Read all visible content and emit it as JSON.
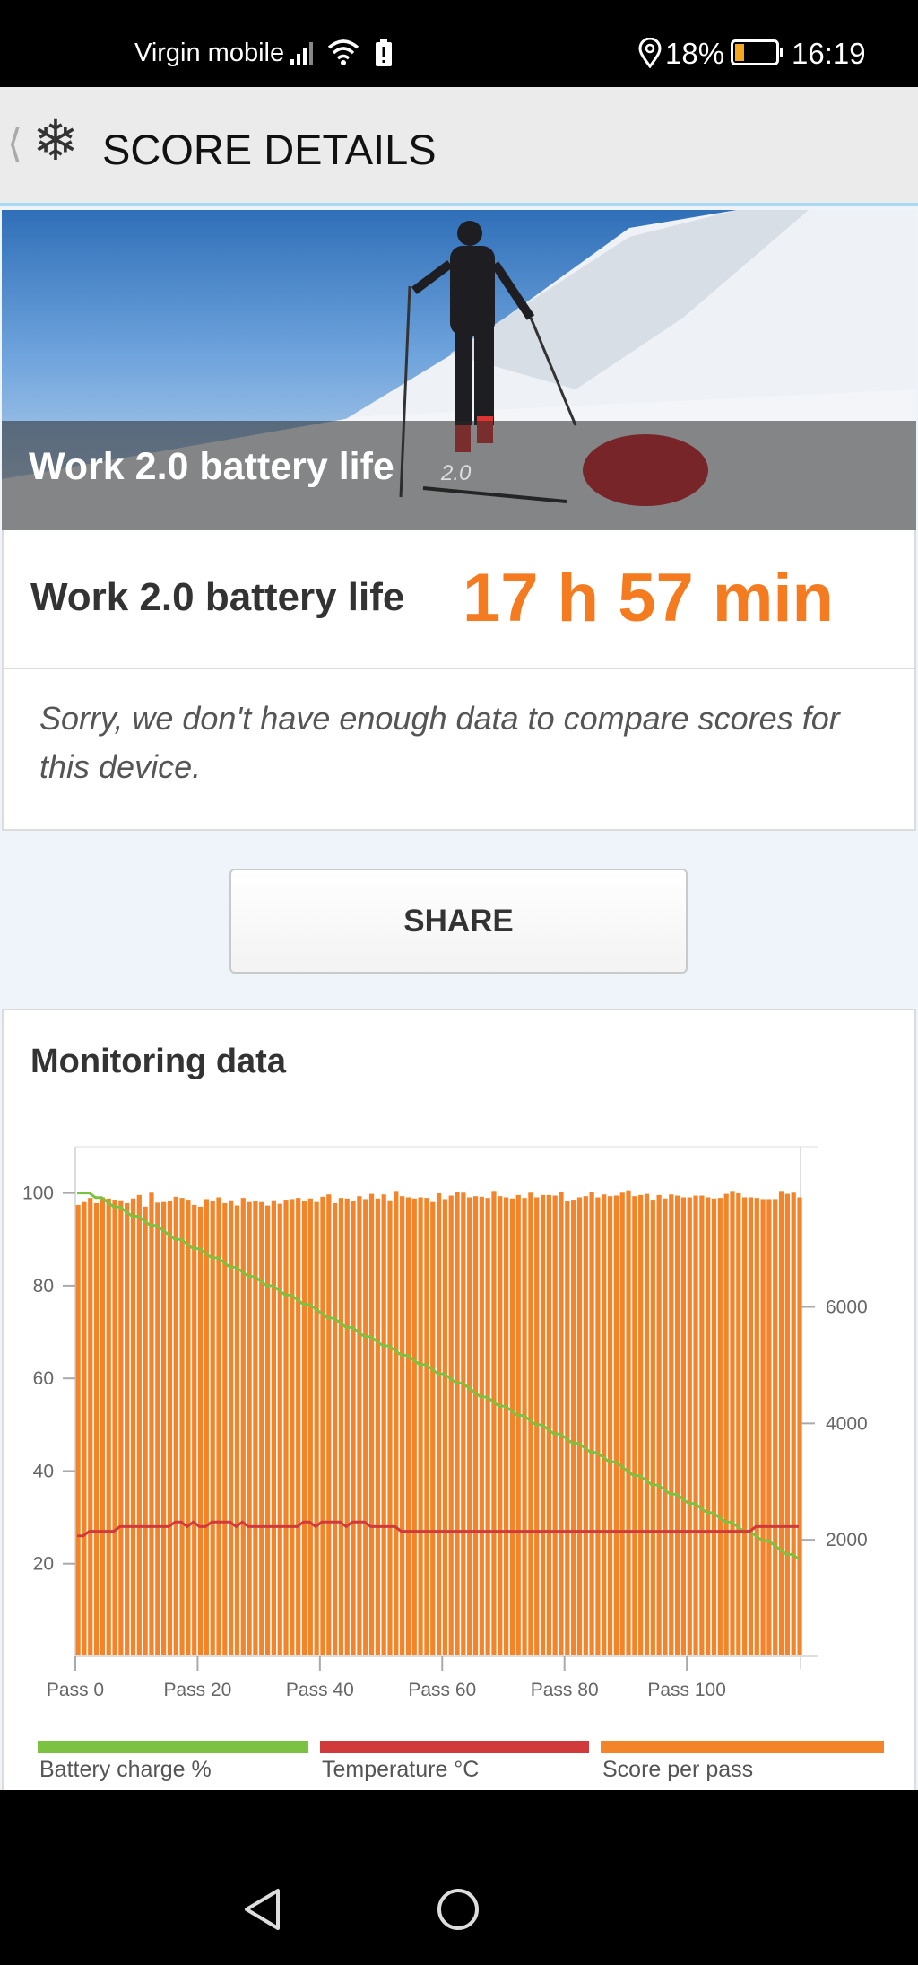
{
  "status_bar": {
    "carrier": "Virgin mobile",
    "battery_percent": "18%",
    "time": "16:19",
    "icons": [
      "signal-icon",
      "wifi-icon",
      "battery-alert-icon",
      "location-icon",
      "battery-icon"
    ]
  },
  "header": {
    "title": "SCORE DETAILS",
    "icons": [
      "back-chevron-icon",
      "snowflake-icon"
    ]
  },
  "hero": {
    "title": "Work 2.0 battery life",
    "version": "2.0"
  },
  "score": {
    "label": "Work 2.0 battery life",
    "value": "17 h 57 min",
    "color": "#f47b20"
  },
  "comparison": {
    "message": "Sorry, we don't have enough data to compare scores for this device."
  },
  "share": {
    "label": "SHARE"
  },
  "monitoring": {
    "title": "Monitoring data"
  },
  "chart_data": {
    "type": "bar+line",
    "x_tick_labels": [
      "Pass 0",
      "Pass 20",
      "Pass 40",
      "Pass 60",
      "Pass 80",
      "Pass 100"
    ],
    "x_ticks": [
      0,
      20,
      40,
      60,
      80,
      100
    ],
    "xlim": [
      0,
      118.6
    ],
    "y_left_ticks": [
      20,
      40,
      60,
      80,
      100
    ],
    "y_left_lim": [
      0,
      110
    ],
    "y_right_ticks": [
      2000,
      4000,
      6000
    ],
    "y_right_lim": [
      0,
      8750
    ],
    "legend_placement": "bottom",
    "series": [
      {
        "name": "Battery charge %",
        "type": "line",
        "axis": "left",
        "color": "#7cc242",
        "values": [
          100,
          100,
          100,
          99,
          99,
          98,
          97,
          97,
          96,
          95,
          95,
          94,
          93,
          93,
          92,
          91,
          90,
          90,
          89,
          88,
          88,
          87,
          86,
          86,
          85,
          84,
          84,
          83,
          82,
          82,
          81,
          80,
          80,
          79,
          78,
          78,
          77,
          76,
          76,
          75,
          74,
          73,
          73,
          72,
          71,
          71,
          70,
          69,
          69,
          68,
          67,
          67,
          66,
          65,
          65,
          64,
          63,
          63,
          62,
          61,
          61,
          60,
          59,
          59,
          58,
          57,
          56,
          56,
          55,
          54,
          54,
          53,
          52,
          52,
          51,
          50,
          50,
          49,
          48,
          48,
          47,
          46,
          46,
          45,
          44,
          44,
          43,
          42,
          42,
          41,
          40,
          39,
          39,
          38,
          37,
          37,
          36,
          35,
          35,
          34,
          33,
          33,
          32,
          31,
          31,
          30,
          29,
          29,
          28,
          27,
          27,
          26,
          25,
          25,
          24,
          23,
          22,
          22,
          21
        ]
      },
      {
        "name": "Temperature °C",
        "type": "line",
        "axis": "left",
        "color": "#d03a3a",
        "values": [
          26,
          26,
          27,
          27,
          27,
          27,
          27,
          28,
          28,
          28,
          28,
          28,
          28,
          28,
          28,
          28,
          29,
          29,
          28,
          29,
          28,
          28,
          29,
          29,
          29,
          29,
          28,
          29,
          28,
          28,
          28,
          28,
          28,
          28,
          28,
          28,
          28,
          29,
          29,
          28,
          29,
          29,
          29,
          29,
          28,
          29,
          29,
          29,
          28,
          28,
          28,
          28,
          28,
          27,
          27,
          27,
          27,
          27,
          27,
          27,
          27,
          27,
          27,
          27,
          27,
          27,
          27,
          27,
          27,
          27,
          27,
          27,
          27,
          27,
          27,
          27,
          27,
          27,
          27,
          27,
          27,
          27,
          27,
          27,
          27,
          27,
          27,
          27,
          27,
          27,
          27,
          27,
          27,
          27,
          27,
          27,
          27,
          27,
          27,
          27,
          27,
          27,
          27,
          27,
          27,
          27,
          27,
          27,
          27,
          27,
          27,
          28,
          28,
          28,
          28,
          28,
          28,
          28,
          28
        ]
      },
      {
        "name": "Score per pass",
        "type": "bar",
        "axis": "right",
        "color": "#f4842a",
        "values": [
          7750,
          7800,
          7870,
          7780,
          7880,
          7860,
          7840,
          7830,
          7780,
          7860,
          7920,
          7720,
          7960,
          7790,
          7800,
          7820,
          7890,
          7870,
          7840,
          7750,
          7720,
          7850,
          7810,
          7880,
          7780,
          7830,
          7740,
          7870,
          7800,
          7810,
          7800,
          7740,
          7830,
          7770,
          7840,
          7850,
          7870,
          7820,
          7860,
          7800,
          7890,
          7930,
          7780,
          7870,
          7860,
          7820,
          7900,
          7850,
          7940,
          7860,
          7930,
          7830,
          7990,
          7900,
          7880,
          7860,
          7880,
          7870,
          7800,
          7950,
          7850,
          7910,
          7980,
          7960,
          7880,
          7900,
          7890,
          7870,
          7990,
          7900,
          7880,
          7860,
          7920,
          7870,
          7960,
          7880,
          7920,
          7920,
          7910,
          7980,
          7810,
          7840,
          7880,
          7900,
          7970,
          7880,
          7930,
          7900,
          7910,
          7960,
          8000,
          7900,
          7920,
          7940,
          7840,
          7920,
          7860,
          7930,
          7910,
          7880,
          7880,
          7910,
          7910,
          7880,
          7860,
          7870,
          7940,
          7990,
          7950,
          7880,
          7880,
          7870,
          7850,
          7850,
          7850,
          7990,
          7940,
          7960,
          7880
        ]
      }
    ]
  }
}
